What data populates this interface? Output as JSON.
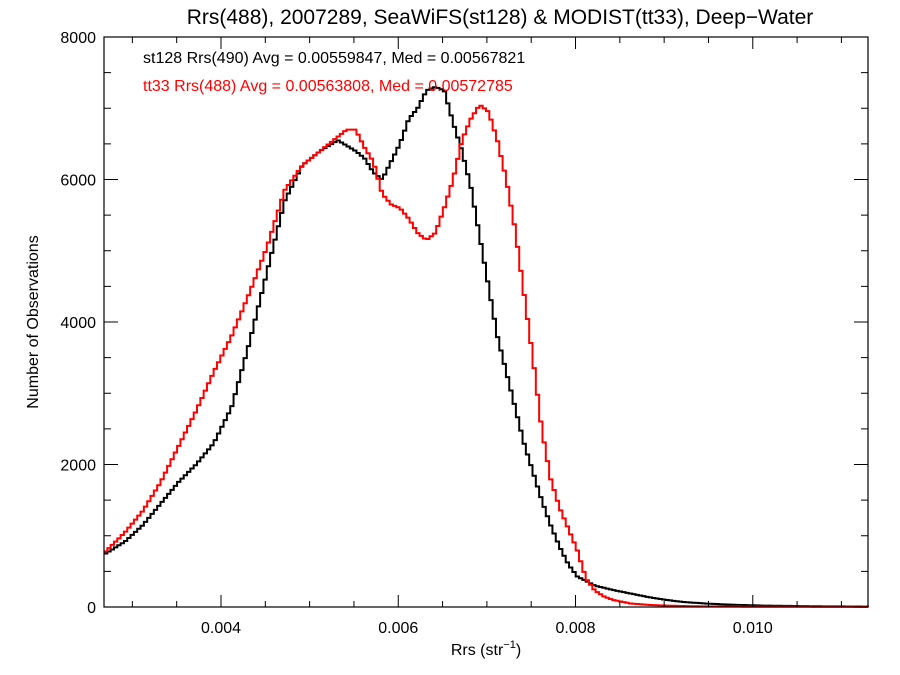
{
  "chart_data": {
    "type": "line",
    "title": "Rrs(488), 2007289, SeaWiFS(st128) & MODIST(tt33), Deep−Water",
    "xlabel": "Rrs (str",
    "xlabel_sup": "−1",
    "xlabel_close": ")",
    "ylabel": "Number of Observations",
    "xlim": [
      0.00268,
      0.0113
    ],
    "ylim": [
      0,
      8000
    ],
    "xticks": [
      {
        "value": 0.004,
        "label": "0.004"
      },
      {
        "value": 0.006,
        "label": "0.006"
      },
      {
        "value": 0.008,
        "label": "0.008"
      },
      {
        "value": 0.01,
        "label": "0.010"
      }
    ],
    "yticks": [
      {
        "value": 0,
        "label": "0"
      },
      {
        "value": 2000,
        "label": "2000"
      },
      {
        "value": 4000,
        "label": "4000"
      },
      {
        "value": 6000,
        "label": "6000"
      },
      {
        "value": 8000,
        "label": "8000"
      }
    ],
    "grid": false,
    "annotations": [
      {
        "text": "st128 Rrs(490) Avg = 0.00559847, Med = 0.00567821",
        "color": "#000000"
      },
      {
        "text": "tt33 Rrs(488) Avg = 0.00563808, Med = 0.00572785",
        "color": "#ff0000"
      }
    ],
    "series": [
      {
        "color": "#000000",
        "x": [
          0.00268,
          0.0029,
          0.0031,
          0.0033,
          0.0035,
          0.0037,
          0.0039,
          0.0041,
          0.0043,
          0.0045,
          0.0047,
          0.0049,
          0.0051,
          0.0053,
          0.0055,
          0.0056,
          0.0057,
          0.0058,
          0.0059,
          0.006,
          0.0061,
          0.0062,
          0.0063,
          0.0064,
          0.0065,
          0.0066,
          0.0067,
          0.0068,
          0.0069,
          0.007,
          0.0071,
          0.0072,
          0.0073,
          0.0074,
          0.0075,
          0.0076,
          0.0077,
          0.0078,
          0.0079,
          0.008,
          0.0082,
          0.0084,
          0.0086,
          0.0088,
          0.009,
          0.0092,
          0.0095,
          0.0098,
          0.0101,
          0.0104,
          0.0107,
          0.011,
          0.0113
        ],
        "y": [
          750,
          920,
          1150,
          1450,
          1750,
          2000,
          2300,
          2800,
          3700,
          4700,
          5700,
          6200,
          6400,
          6550,
          6400,
          6300,
          6100,
          6000,
          6250,
          6500,
          6850,
          7000,
          7250,
          7300,
          7250,
          6800,
          6400,
          5900,
          5200,
          4500,
          3800,
          3300,
          2800,
          2300,
          1900,
          1500,
          1150,
          850,
          600,
          430,
          300,
          240,
          190,
          140,
          100,
          70,
          45,
          30,
          20,
          15,
          10,
          8,
          5
        ]
      },
      {
        "color": "#ff0000",
        "x": [
          0.00268,
          0.0029,
          0.0031,
          0.0033,
          0.0035,
          0.0037,
          0.0039,
          0.0041,
          0.0043,
          0.0045,
          0.0047,
          0.0049,
          0.0051,
          0.0053,
          0.0054,
          0.0055,
          0.0056,
          0.0057,
          0.0058,
          0.0059,
          0.006,
          0.0061,
          0.0062,
          0.0063,
          0.0064,
          0.0065,
          0.0066,
          0.0067,
          0.0068,
          0.0069,
          0.007,
          0.0071,
          0.0072,
          0.0073,
          0.0074,
          0.0075,
          0.0076,
          0.0077,
          0.0078,
          0.0079,
          0.008,
          0.0081,
          0.0082,
          0.0083,
          0.0084,
          0.0086,
          0.0088,
          0.009,
          0.0093,
          0.0096,
          0.01,
          0.0105,
          0.011,
          0.0113
        ],
        "y": [
          780,
          1050,
          1350,
          1750,
          2250,
          2750,
          3300,
          3800,
          4400,
          5050,
          5850,
          6200,
          6400,
          6600,
          6700,
          6700,
          6450,
          6250,
          5800,
          5650,
          5600,
          5450,
          5250,
          5150,
          5250,
          5600,
          6000,
          6550,
          6850,
          7050,
          6950,
          6550,
          6000,
          5300,
          4400,
          3500,
          2500,
          1800,
          1400,
          1100,
          800,
          400,
          230,
          150,
          100,
          50,
          30,
          20,
          10,
          8,
          5,
          5,
          3,
          2
        ]
      }
    ]
  }
}
